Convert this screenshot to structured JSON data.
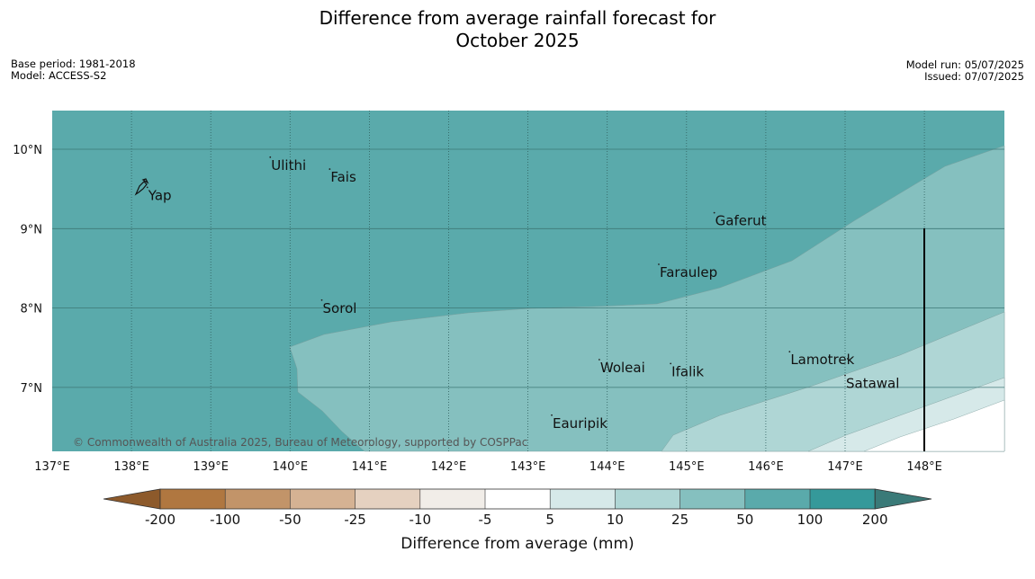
{
  "title": {
    "line1": "Difference from average rainfall forecast for",
    "line2": "October 2025"
  },
  "meta_left": {
    "base_period": "Base period: 1981-2018",
    "model": "Model: ACCESS-S2"
  },
  "meta_right": {
    "model_run": "Model run: 05/07/2025",
    "issued": "Issued: 07/07/2025"
  },
  "map": {
    "extent": {
      "lon": [
        137,
        149
      ],
      "lat": [
        6.2,
        10.5
      ]
    },
    "lon_ticks": [
      "137°E",
      "138°E",
      "139°E",
      "140°E",
      "141°E",
      "142°E",
      "143°E",
      "144°E",
      "145°E",
      "146°E",
      "147°E",
      "148°E"
    ],
    "lat_ticks": [
      "10°N",
      "9°N",
      "8°N",
      "7°N"
    ],
    "places": [
      {
        "name": "Yap",
        "lon": 138.2,
        "lat": 9.52
      },
      {
        "name": "Ulithi",
        "lon": 139.75,
        "lat": 9.9
      },
      {
        "name": "Fais",
        "lon": 140.5,
        "lat": 9.75
      },
      {
        "name": "Gaferut",
        "lon": 145.35,
        "lat": 9.2
      },
      {
        "name": "Faraulep",
        "lon": 144.65,
        "lat": 8.55
      },
      {
        "name": "Sorol",
        "lon": 140.4,
        "lat": 8.1
      },
      {
        "name": "Woleai",
        "lon": 143.9,
        "lat": 7.35
      },
      {
        "name": "Ifalik",
        "lon": 144.8,
        "lat": 7.3
      },
      {
        "name": "Lamotrek",
        "lon": 146.3,
        "lat": 7.45
      },
      {
        "name": "Satawal",
        "lon": 147.0,
        "lat": 7.15
      },
      {
        "name": "Eauripik",
        "lon": 143.3,
        "lat": 6.65
      }
    ],
    "copyright": "© Commonwealth of Australia 2025, Bureau of Meteorology, supported by COSPPac",
    "colors": {
      "c50_100": "#5aaaab",
      "c25_50": "#85c0bf",
      "c10_25": "#afd6d5",
      "c5_10": "#d6e9e9",
      "c_5_5": "#ffffff"
    }
  },
  "colorbar": {
    "ticks": [
      "-200",
      "-100",
      "-50",
      "-25",
      "-10",
      "-5",
      "5",
      "10",
      "25",
      "50",
      "100",
      "200"
    ],
    "colors": [
      "#8d5a2b",
      "#b07740",
      "#c29469",
      "#d5b293",
      "#e5d1c0",
      "#f1ede8",
      "#ffffff",
      "#d6e9e9",
      "#afd6d5",
      "#85c0bf",
      "#5aaaab",
      "#35999a",
      "#3a7a78"
    ],
    "label": "Difference from average (mm)"
  }
}
